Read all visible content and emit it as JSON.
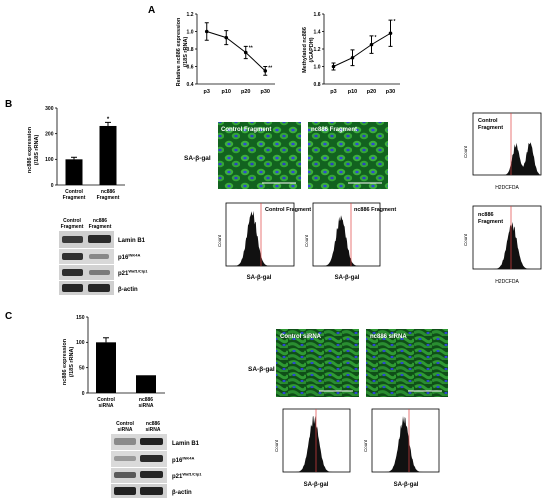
{
  "panel_letters": [
    "A",
    "B",
    "C"
  ],
  "panelA": {
    "left": {
      "ylabel": [
        "Relative nc886 expression",
        "(/18S rRNA)"
      ],
      "categories": [
        "p3",
        "p10",
        "p20",
        "p30"
      ],
      "yticks": [
        "0.4",
        "0.6",
        "0.8",
        "1.0",
        "1.2"
      ],
      "stars": [
        "",
        "",
        "**",
        "**"
      ]
    },
    "right": {
      "ylabel": [
        "Methylated nc886",
        "(/GAPDH)"
      ],
      "categories": [
        "p3",
        "p10",
        "p20",
        "p30"
      ],
      "yticks": [
        "0.8",
        "1.0",
        "1.2",
        "1.4",
        "1.6"
      ],
      "stars": [
        "",
        "",
        "*",
        "*"
      ]
    }
  },
  "panelB": {
    "bar": {
      "ylabel": [
        "nc886 expression",
        "(/18S rRNA)"
      ],
      "yticks": [
        "0",
        "100",
        "200",
        "300"
      ],
      "categories": [
        [
          "Control",
          "Fragment"
        ],
        [
          "nc886",
          "Fragment"
        ]
      ],
      "star": "*"
    },
    "blot_header": [
      [
        "Control",
        "Fragment"
      ],
      [
        "nc886",
        "Fragment"
      ]
    ],
    "blot_labels": [
      {
        "main": "Lamin B1",
        "sup": ""
      },
      {
        "main": "p16",
        "sup": "INK4A"
      },
      {
        "main": "p21",
        "sup": "Waf1/Cip1"
      },
      {
        "main": "β-actin",
        "sup": ""
      }
    ],
    "sa_label": "SA-β-gal",
    "micrographs": [
      "Control Fragment",
      "nc886 Fragment"
    ],
    "hist_titles": [
      "Control Fragment",
      "nc886 Fragment"
    ],
    "hist_xlabel": "SA-β-gal",
    "hist_ylabel": "Count",
    "ros_titles": [
      [
        "Control",
        "Fragment"
      ],
      [
        "nc886",
        "Fragment"
      ]
    ],
    "ros_xlabel": "H2DCFDA",
    "ros_ylabel": "Count"
  },
  "panelC": {
    "bar": {
      "ylabel": [
        "nc886 expression",
        "(/18S rRNA)"
      ],
      "yticks": [
        "0",
        "50",
        "100",
        "150"
      ],
      "categories": [
        [
          "Control",
          "siRNA"
        ],
        [
          "nc886",
          "siRNA"
        ]
      ]
    },
    "blot_header": [
      [
        "Control",
        "siRNA"
      ],
      [
        "nc886",
        "siRNA"
      ]
    ],
    "blot_labels": [
      {
        "main": "Lamin B1",
        "sup": ""
      },
      {
        "main": "p16",
        "sup": "INK4A"
      },
      {
        "main": "p21",
        "sup": "Waf1/Cip1"
      },
      {
        "main": "β-actin",
        "sup": ""
      }
    ],
    "sa_label": "SA-β-gal",
    "micrographs": [
      "Control siRNA",
      "nc886 siRNA"
    ],
    "hist_xlabel": "SA-β-gal",
    "hist_ylabel": "Count"
  },
  "colors": {
    "micrograph_green": "#1f8a2e",
    "nucleus_blue": "#2b46c9",
    "threshold_line": "#e04040",
    "axis": "#000000"
  },
  "chart_data": [
    {
      "type": "line",
      "title": "",
      "xlabel": "",
      "ylabel": "Relative nc886 expression (/18S rRNA)",
      "categories": [
        "p3",
        "p10",
        "p20",
        "p30"
      ],
      "series": [
        {
          "values": [
            1.0,
            0.93,
            0.76,
            0.55
          ],
          "errors": [
            0.1,
            0.08,
            0.07,
            0.05
          ]
        }
      ],
      "ylim": [
        0.4,
        1.2
      ]
    },
    {
      "type": "line",
      "title": "",
      "xlabel": "",
      "ylabel": "Methylated nc886 (/GAPDH)",
      "categories": [
        "p3",
        "p10",
        "p20",
        "p30"
      ],
      "series": [
        {
          "values": [
            1.0,
            1.1,
            1.25,
            1.38
          ],
          "errors": [
            0.04,
            0.09,
            0.1,
            0.15
          ]
        }
      ],
      "ylim": [
        0.8,
        1.6
      ]
    },
    {
      "type": "bar",
      "title": "",
      "ylabel": "nc886 expression (/18S rRNA)",
      "categories": [
        "Control Fragment",
        "nc886 Fragment"
      ],
      "values": [
        100,
        230
      ],
      "errors": [
        8,
        14
      ],
      "ylim": [
        0,
        300
      ]
    },
    {
      "type": "bar",
      "title": "",
      "ylabel": "nc886 expression (/18S rRNA)",
      "categories": [
        "Control siRNA",
        "nc886 siRNA"
      ],
      "values": [
        100,
        35
      ],
      "errors": [
        9,
        0
      ],
      "ylim": [
        0,
        150
      ]
    }
  ]
}
